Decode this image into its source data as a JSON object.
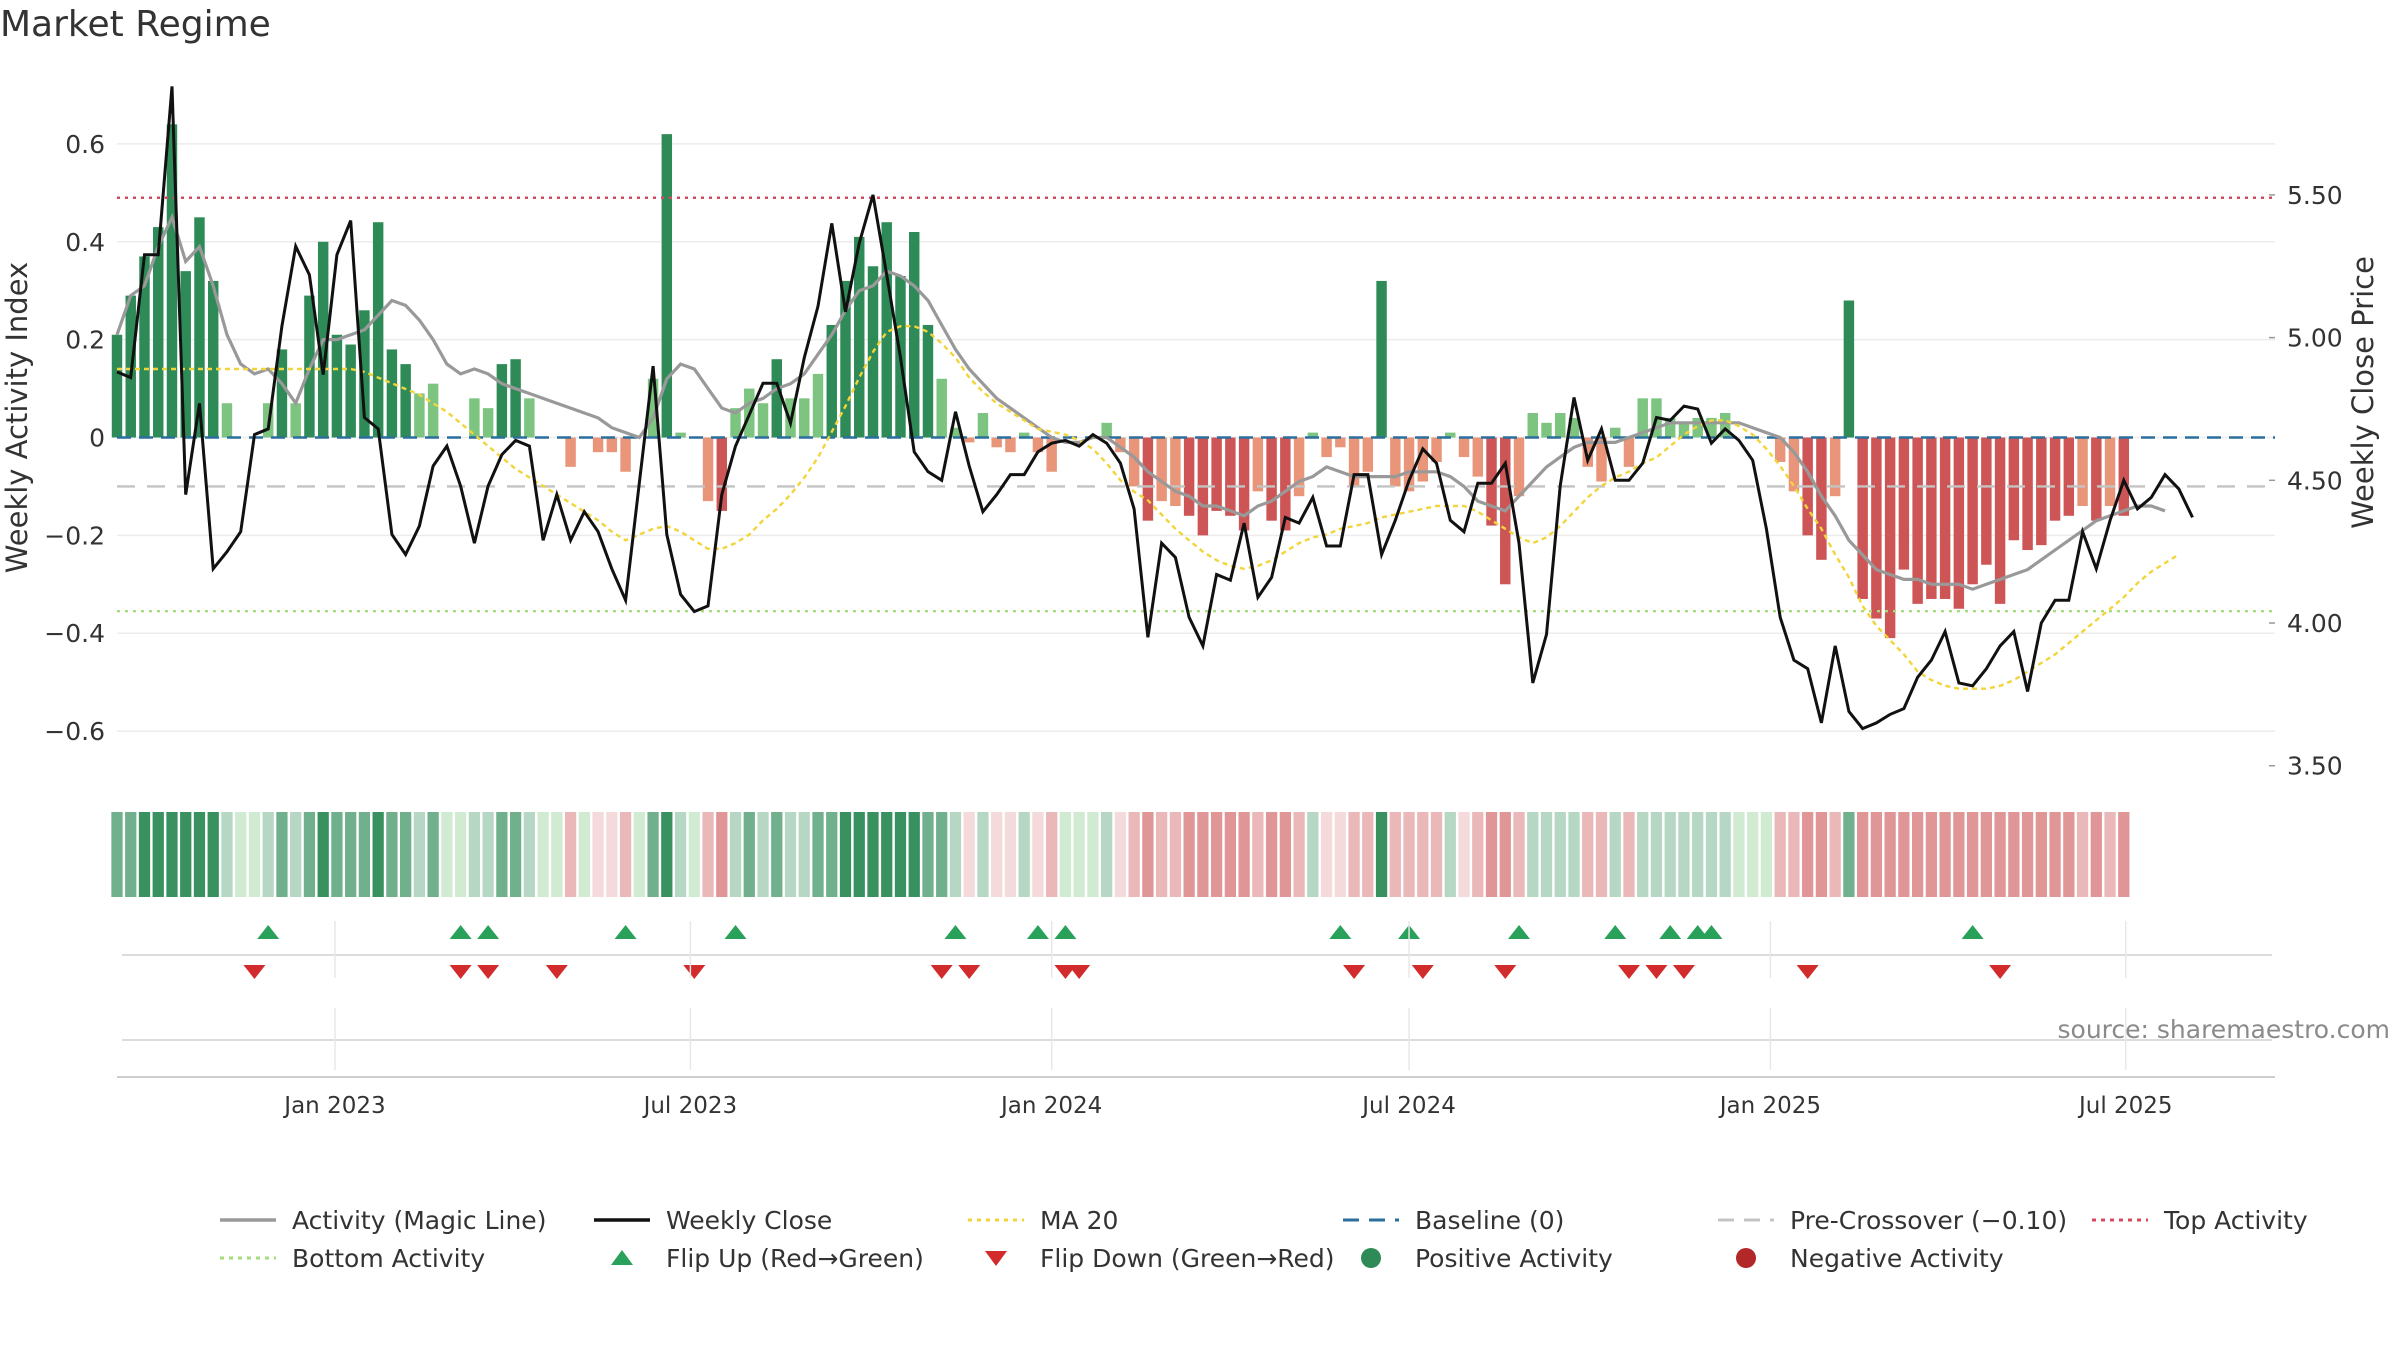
{
  "title": "Market Regime",
  "source": "source: sharemaestro.com",
  "colors": {
    "pos_dark": "#2e8b57",
    "pos_light": "#7cc47f",
    "neg_dark": "#cd5555",
    "neg_light": "#e8957a",
    "magic": "#999999",
    "close": "#111111",
    "ma": "#f2d43b",
    "baseline": "#2b6f9e",
    "precross": "#c4c4c4",
    "top": "#d9485f",
    "bottom": "#a6dd7c",
    "flip_up": "#2aa15a",
    "flip_down": "#d22b2b"
  },
  "chart_data": {
    "type": "bar",
    "title": "Market Regime",
    "x_range": [
      "2022-09-12",
      "2025-09-15"
    ],
    "x_ticks": [
      "Jan 2023",
      "Jul 2023",
      "Jan 2024",
      "Jul 2024",
      "Jan 2025",
      "Jul 2025"
    ],
    "x_tick_dates": [
      "2023-01-01",
      "2023-07-01",
      "2024-01-01",
      "2024-07-01",
      "2025-01-01",
      "2025-07-01"
    ],
    "y_left": {
      "label": "Weekly Activity Index",
      "ylim": [
        -0.7,
        0.7
      ],
      "ticks": [
        0.6,
        0.4,
        0.2,
        0,
        -0.2,
        -0.4,
        -0.6
      ],
      "tick_labels": [
        "0.6",
        "0.4",
        "0.2",
        "0",
        "−0.2",
        "−0.4",
        "−0.6"
      ]
    },
    "y_right": {
      "label": "Weekly Close Price",
      "ylim": [
        3.45,
        5.85
      ],
      "ticks": [
        5.5,
        5.0,
        4.5,
        4.0,
        3.5
      ],
      "tick_labels": [
        "5.50",
        "5.00",
        "4.50",
        "4.00",
        "3.50"
      ]
    },
    "reference_lines": {
      "top_activity": 0.49,
      "bottom_activity": -0.355,
      "pre_crossover": -0.1,
      "baseline": 0
    },
    "activity": [
      0.21,
      0.29,
      0.37,
      0.43,
      0.64,
      0.34,
      0.45,
      0.32,
      0.07,
      0,
      0,
      0.07,
      0.18,
      0.07,
      0.29,
      0.4,
      0.21,
      0.19,
      0.26,
      0.44,
      0.18,
      0.15,
      0.09,
      0.11,
      0,
      0,
      0.08,
      0.06,
      0.15,
      0.16,
      0.08,
      0,
      0,
      -0.06,
      0,
      -0.03,
      -0.03,
      -0.07,
      0,
      0.12,
      0.62,
      0.01,
      0,
      -0.13,
      -0.15,
      0.06,
      0.1,
      0.07,
      0.16,
      0.08,
      0.08,
      0.13,
      0.23,
      0.32,
      0.41,
      0.35,
      0.44,
      0.33,
      0.42,
      0.23,
      0.12,
      0.02,
      -0.01,
      0.05,
      -0.02,
      -0.03,
      0.01,
      -0.03,
      -0.07,
      0,
      0,
      0,
      0.03,
      -0.03,
      -0.1,
      -0.17,
      -0.13,
      -0.14,
      -0.16,
      -0.2,
      -0.15,
      -0.16,
      -0.19,
      -0.11,
      -0.17,
      -0.19,
      -0.12,
      0.01,
      -0.04,
      -0.02,
      -0.1,
      -0.07,
      0.32,
      -0.1,
      -0.11,
      -0.09,
      -0.05,
      0.01,
      -0.04,
      -0.08,
      -0.18,
      -0.3,
      -0.12,
      0.05,
      0.03,
      0.05,
      0.04,
      -0.06,
      -0.09,
      0.02,
      -0.06,
      0.08,
      0.08,
      0.04,
      0.03,
      0.04,
      0.04,
      0.05,
      0,
      0,
      0,
      -0.05,
      -0.11,
      -0.2,
      -0.25,
      -0.12,
      0.28,
      -0.33,
      -0.37,
      -0.41,
      -0.27,
      -0.34,
      -0.33,
      -0.33,
      -0.35,
      -0.3,
      -0.26,
      -0.34,
      -0.21,
      -0.23,
      -0.22,
      -0.17,
      -0.16,
      -0.14,
      -0.17,
      -0.14,
      -0.16
    ],
    "weekly_close": [
      4.88,
      4.86,
      5.29,
      5.29,
      5.88,
      4.45,
      4.77,
      4.19,
      4.25,
      4.32,
      4.66,
      4.68,
      5.04,
      5.32,
      5.22,
      4.87,
      5.29,
      5.41,
      4.72,
      4.68,
      4.31,
      4.24,
      4.34,
      4.55,
      4.62,
      4.48,
      4.28,
      4.48,
      4.59,
      4.64,
      4.62,
      4.29,
      4.45,
      4.29,
      4.39,
      4.32,
      4.19,
      4.08,
      4.49,
      4.9,
      4.31,
      4.1,
      4.04,
      4.06,
      4.45,
      4.62,
      4.73,
      4.84,
      4.84,
      4.7,
      4.93,
      5.11,
      5.4,
      5.09,
      5.33,
      5.5,
      5.22,
      4.93,
      4.6,
      4.53,
      4.5,
      4.74,
      4.55,
      4.39,
      4.45,
      4.52,
      4.52,
      4.6,
      4.63,
      4.64,
      4.62,
      4.66,
      4.63,
      4.56,
      4.4,
      3.95,
      4.28,
      4.23,
      4.02,
      3.92,
      4.17,
      4.15,
      4.35,
      4.09,
      4.16,
      4.37,
      4.35,
      4.44,
      4.27,
      4.27,
      4.52,
      4.52,
      4.24,
      4.36,
      4.5,
      4.61,
      4.56,
      4.36,
      4.32,
      4.49,
      4.49,
      4.56,
      4.28,
      3.79,
      3.96,
      4.48,
      4.79,
      4.57,
      4.68,
      4.5,
      4.5,
      4.56,
      4.72,
      4.71,
      4.76,
      4.75,
      4.63,
      4.68,
      4.64,
      4.57,
      4.33,
      4.02,
      3.87,
      3.84,
      3.65,
      3.92,
      3.69,
      3.63,
      3.65,
      3.68,
      3.7,
      3.81,
      3.87,
      3.97,
      3.79,
      3.78,
      3.84,
      3.92,
      3.97,
      3.76,
      4.0,
      4.08,
      4.08,
      4.32,
      4.19,
      4.36,
      4.5,
      4.4,
      4.44,
      4.52,
      4.47,
      4.37
    ],
    "magic_line": [
      0.21,
      0.29,
      0.31,
      0.39,
      0.45,
      0.36,
      0.39,
      0.31,
      0.21,
      0.15,
      0.13,
      0.14,
      0.11,
      0.07,
      0.14,
      0.2,
      0.2,
      0.21,
      0.22,
      0.25,
      0.28,
      0.27,
      0.24,
      0.2,
      0.15,
      0.13,
      0.14,
      0.13,
      0.11,
      0.1,
      0.09,
      0.08,
      0.07,
      0.06,
      0.05,
      0.04,
      0.02,
      0.01,
      0,
      0.04,
      0.12,
      0.15,
      0.14,
      0.1,
      0.06,
      0.05,
      0.07,
      0.08,
      0.1,
      0.11,
      0.13,
      0.17,
      0.21,
      0.26,
      0.3,
      0.31,
      0.34,
      0.33,
      0.31,
      0.28,
      0.23,
      0.18,
      0.14,
      0.11,
      0.08,
      0.06,
      0.04,
      0.02,
      0.0,
      -0.01,
      -0.01,
      0.0,
      0,
      -0.02,
      -0.04,
      -0.07,
      -0.09,
      -0.11,
      -0.12,
      -0.14,
      -0.14,
      -0.15,
      -0.16,
      -0.14,
      -0.13,
      -0.11,
      -0.09,
      -0.08,
      -0.06,
      -0.07,
      -0.08,
      -0.08,
      -0.08,
      -0.08,
      -0.07,
      -0.07,
      -0.07,
      -0.08,
      -0.1,
      -0.13,
      -0.14,
      -0.15,
      -0.12,
      -0.09,
      -0.06,
      -0.04,
      -0.02,
      -0.01,
      -0.01,
      -0.01,
      0,
      0.01,
      0.02,
      0.03,
      0.03,
      0.03,
      0.03,
      0.03,
      0.03,
      0.02,
      0.01,
      0,
      -0.03,
      -0.07,
      -0.12,
      -0.16,
      -0.21,
      -0.24,
      -0.27,
      -0.28,
      -0.29,
      -0.29,
      -0.3,
      -0.3,
      -0.3,
      -0.31,
      -0.3,
      -0.29,
      -0.28,
      -0.27,
      -0.25,
      -0.23,
      -0.21,
      -0.19,
      -0.17,
      -0.16,
      -0.15,
      -0.14,
      -0.14,
      -0.15
    ],
    "ma_20": [
      4.89,
      4.89,
      4.89,
      4.89,
      4.89,
      4.89,
      4.89,
      4.89,
      4.89,
      4.89,
      4.89,
      4.89,
      4.89,
      4.89,
      4.89,
      4.89,
      4.89,
      4.89,
      4.88,
      4.86,
      4.84,
      4.82,
      4.8,
      4.77,
      4.74,
      4.7,
      4.66,
      4.62,
      4.58,
      4.54,
      4.51,
      4.48,
      4.45,
      4.42,
      4.39,
      4.36,
      4.32,
      4.29,
      4.31,
      4.33,
      4.34,
      4.32,
      4.29,
      4.26,
      4.26,
      4.28,
      4.31,
      4.36,
      4.4,
      4.45,
      4.51,
      4.58,
      4.67,
      4.76,
      4.86,
      4.95,
      5.02,
      5.04,
      5.04,
      5.02,
      4.98,
      4.93,
      4.86,
      4.81,
      4.77,
      4.74,
      4.71,
      4.68,
      4.67,
      4.66,
      4.64,
      4.61,
      4.56,
      4.5,
      4.46,
      4.43,
      4.38,
      4.33,
      4.29,
      4.25,
      4.22,
      4.2,
      4.19,
      4.2,
      4.22,
      4.25,
      4.28,
      4.3,
      4.31,
      4.33,
      4.34,
      4.35,
      4.37,
      4.38,
      4.39,
      4.4,
      4.41,
      4.41,
      4.41,
      4.39,
      4.36,
      4.33,
      4.3,
      4.28,
      4.3,
      4.34,
      4.39,
      4.44,
      4.48,
      4.51,
      4.53,
      4.56,
      4.58,
      4.62,
      4.66,
      4.69,
      4.71,
      4.71,
      4.69,
      4.66,
      4.61,
      4.55,
      4.48,
      4.4,
      4.33,
      4.24,
      4.16,
      4.06,
      3.99,
      3.94,
      3.89,
      3.83,
      3.8,
      3.78,
      3.77,
      3.77,
      3.77,
      3.78,
      3.8,
      3.83,
      3.86,
      3.89,
      3.93,
      3.97,
      4.01,
      4.05,
      4.09,
      4.14,
      4.18,
      4.21,
      4.24
    ],
    "flip_up_dates": [
      "2022-11-28",
      "2023-03-06",
      "2023-03-20",
      "2023-05-29",
      "2023-07-24",
      "2023-11-13",
      "2023-12-25",
      "2024-01-08",
      "2024-05-27",
      "2024-07-01",
      "2024-08-26",
      "2024-10-14",
      "2024-11-11",
      "2024-11-25",
      "2024-12-02",
      "2025-04-14"
    ],
    "flip_down_dates": [
      "2022-11-21",
      "2023-03-06",
      "2023-03-20",
      "2023-04-24",
      "2023-07-03",
      "2023-11-06",
      "2023-11-20",
      "2024-01-08",
      "2024-01-15",
      "2024-06-03",
      "2024-07-08",
      "2024-08-19",
      "2024-10-21",
      "2024-11-04",
      "2024-11-18",
      "2025-01-20",
      "2025-04-28"
    ],
    "legend": [
      {
        "label": "Activity (Magic Line)",
        "kind": "line",
        "color": "#999999"
      },
      {
        "label": "Weekly Close",
        "kind": "line",
        "color": "#111111"
      },
      {
        "label": "MA 20",
        "kind": "dotted",
        "color": "#f2d43b"
      },
      {
        "label": "Baseline (0)",
        "kind": "dashed",
        "color": "#2b6f9e"
      },
      {
        "label": "Pre-Crossover (−0.10)",
        "kind": "dashed",
        "color": "#c4c4c4"
      },
      {
        "label": "Top Activity",
        "kind": "dotted",
        "color": "#d9485f"
      },
      {
        "label": "Bottom Activity",
        "kind": "dotted",
        "color": "#a6dd7c"
      },
      {
        "label": "Flip Up (Red→Green)",
        "kind": "triangle-up",
        "color": "#2aa15a"
      },
      {
        "label": "Flip Down (Green→Red)",
        "kind": "triangle-down",
        "color": "#d22b2b"
      },
      {
        "label": "Positive Activity",
        "kind": "dot",
        "color": "#2e8b57"
      },
      {
        "label": "Negative Activity",
        "kind": "dot",
        "color": "#b22727"
      }
    ]
  }
}
